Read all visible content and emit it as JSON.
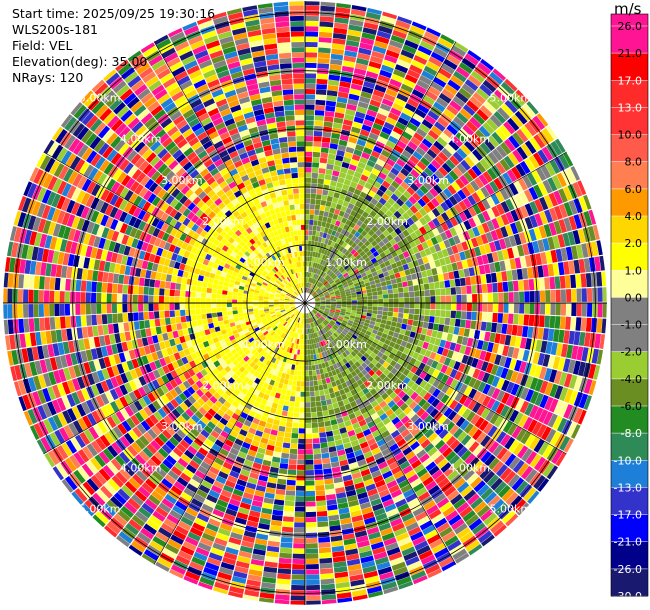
{
  "header": {
    "start_time": "Start time: 2025/09/25 19:30:16",
    "instrument": "WLS200s-181",
    "field": "Field: VEL",
    "elevation": "Elevation(deg): 35.00",
    "nrays": "NRays: 120"
  },
  "colorbar": {
    "unit": "m/s",
    "ticks": [
      "26.0",
      "21.0",
      "17.0",
      "13.0",
      "10.0",
      "8.0",
      "6.0",
      "4.0",
      "2.0",
      "1.0",
      "0.0",
      "-1.0",
      "-2.0",
      "-4.0",
      "-6.0",
      "-8.0",
      "-10.0",
      "-13.0",
      "-17.0",
      "-21.0",
      "-26.0",
      "-30.0"
    ],
    "colors": [
      "#ff1493",
      "#ff1493",
      "#ff0000",
      "#ff2a2a",
      "#ff3333",
      "#ff5a4a",
      "#ff7f50",
      "#ff9900",
      "#ffd700",
      "#ffff00",
      "#ffff99",
      "#808080",
      "#808080",
      "#9acd32",
      "#6b8e23",
      "#228b22",
      "#2e8b57",
      "#1e7fd8",
      "#3333cc",
      "#0000ff",
      "#00008b",
      "#191970"
    ]
  },
  "range_rings": {
    "labels": [
      "1.00km",
      "2.00km",
      "3.00km",
      "4.00km",
      "5.00km"
    ],
    "km": [
      1,
      2,
      3,
      4,
      5
    ]
  },
  "chart_data": {
    "type": "heatmap",
    "projection": "polar (PPI)",
    "field": "VEL",
    "unit": "m/s",
    "nrays": 120,
    "elevation_deg": 35.0,
    "max_range_km": 5.2,
    "ring_spacing_km": 1.0,
    "color_range": [
      -30.0,
      26.0
    ],
    "pattern": "near-field (< ~2 km): positive (yellow) on west side, negative (olive/green) on east side; beyond ~2.5 km: noisy random values across full scale"
  }
}
